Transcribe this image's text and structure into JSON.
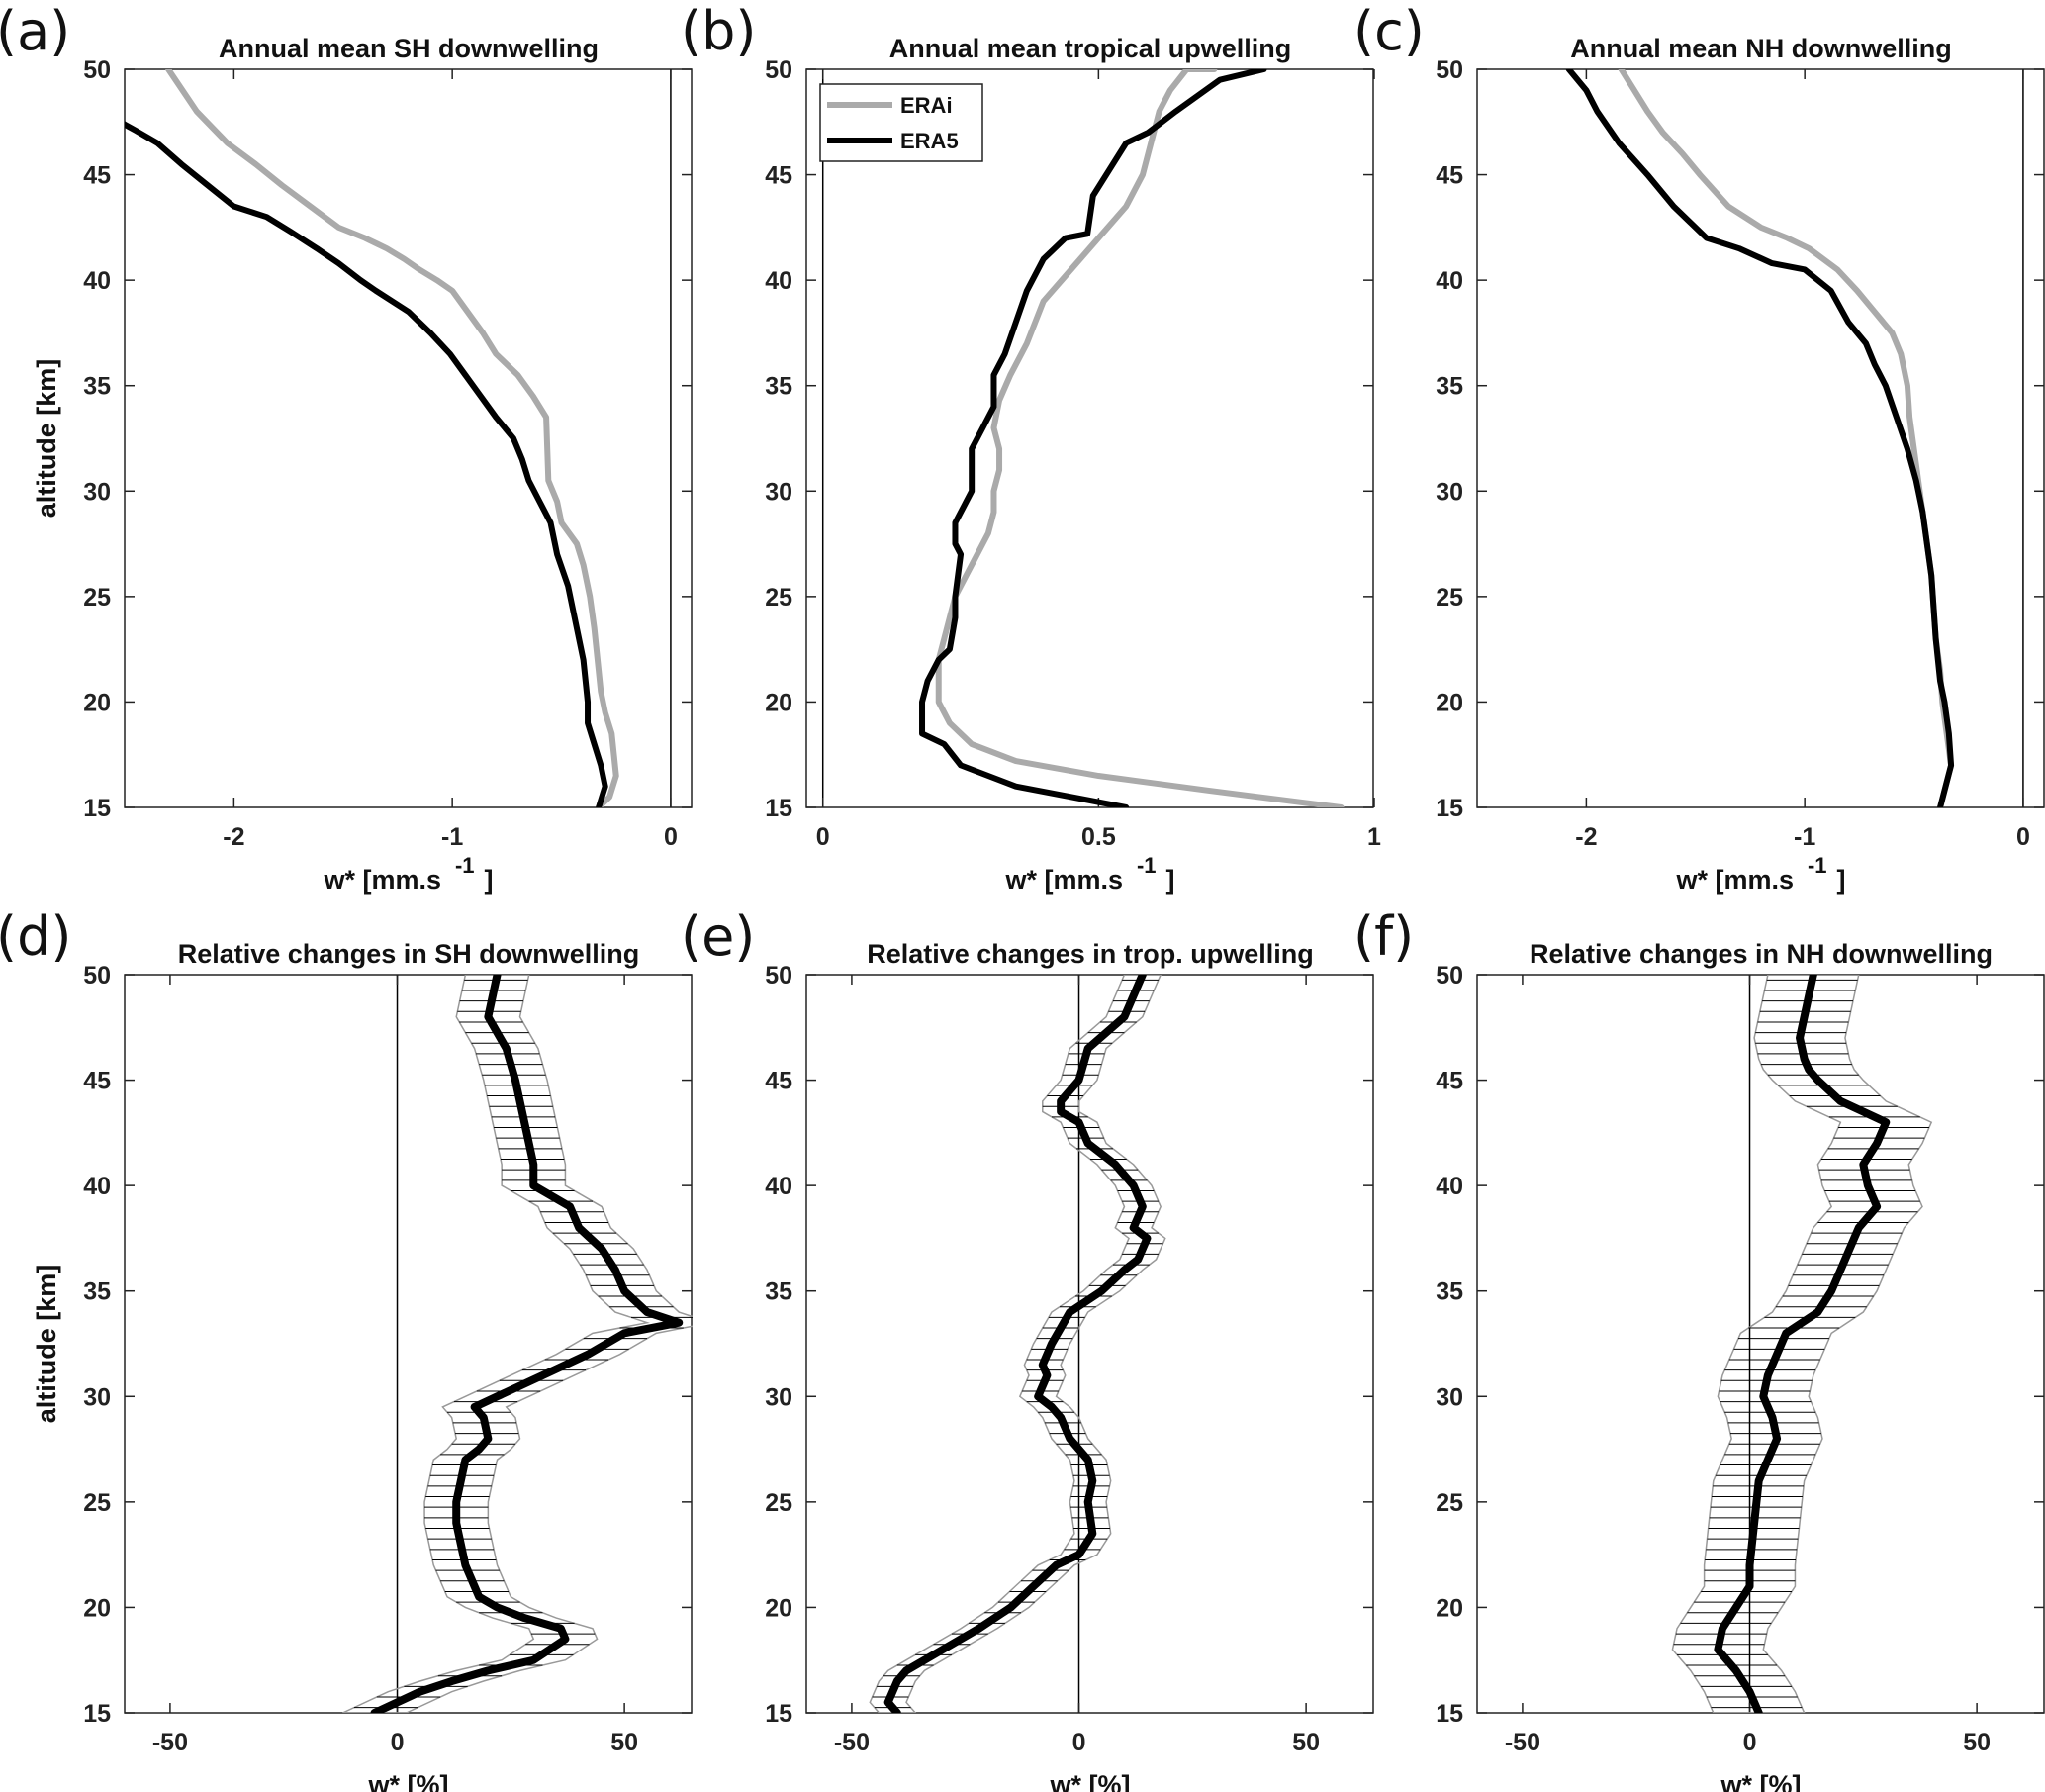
{
  "figure": {
    "id": "six-panel-wstar-figure"
  },
  "chart_data": [
    {
      "panel": "a",
      "panel_label": "(a)",
      "type": "line",
      "title": "Annual mean SH downwelling",
      "xlabel": "w* [mm.s",
      "xlabel_sup": "-1",
      "xlabel_suffix": "]",
      "ylabel": "altitude [km]",
      "xlim": [
        -2.5,
        0.1
      ],
      "ylim": [
        15,
        50
      ],
      "xticks": [
        -2,
        -1,
        0
      ],
      "xtick_labels": [
        "-2",
        "-1",
        "0"
      ],
      "yticks": [
        15,
        20,
        25,
        30,
        35,
        40,
        45,
        50
      ],
      "zero_line": 0,
      "series": [
        {
          "name": "ERAi",
          "color": "#aaaaaa",
          "x": [
            -0.33,
            -0.28,
            -0.25,
            -0.26,
            -0.27,
            -0.3,
            -0.32,
            -0.33,
            -0.34,
            -0.35,
            -0.37,
            -0.4,
            -0.43,
            -0.5,
            -0.52,
            -0.56,
            -0.57,
            -0.63,
            -0.7,
            -0.8,
            -0.86,
            -0.93,
            -1.0,
            -1.07,
            -1.15,
            -1.22,
            -1.3,
            -1.4,
            -1.52,
            -1.65,
            -1.78,
            -1.9,
            -2.03,
            -2.17,
            -2.3
          ],
          "y": [
            15,
            15.5,
            16.5,
            17.5,
            18.5,
            19.5,
            20.5,
            21.5,
            22.5,
            23.5,
            25,
            26.5,
            27.5,
            28.5,
            29.5,
            30.5,
            33.5,
            34.5,
            35.5,
            36.5,
            37.5,
            38.5,
            39.5,
            40.0,
            40.5,
            41.0,
            41.5,
            42.0,
            42.5,
            43.5,
            44.5,
            45.5,
            46.5,
            48,
            50
          ]
        },
        {
          "name": "ERA5",
          "color": "#000000",
          "x": [
            -0.33,
            -0.3,
            -0.32,
            -0.35,
            -0.38,
            -0.38,
            -0.39,
            -0.4,
            -0.42,
            -0.44,
            -0.47,
            -0.52,
            -0.55,
            -0.6,
            -0.65,
            -0.68,
            -0.72,
            -0.8,
            -0.87,
            -0.94,
            -1.01,
            -1.1,
            -1.2,
            -1.35,
            -1.42,
            -1.52,
            -1.62,
            -1.74,
            -1.85,
            -2.0,
            -2.12,
            -2.24,
            -2.35,
            -2.45,
            -2.52
          ],
          "y": [
            15,
            16,
            17,
            18,
            19,
            20,
            21,
            22,
            23,
            24,
            25.5,
            27,
            28.5,
            29.5,
            30.5,
            31.5,
            32.5,
            33.5,
            34.5,
            35.5,
            36.5,
            37.5,
            38.5,
            39.5,
            40,
            40.8,
            41.5,
            42.3,
            43.0,
            43.5,
            44.5,
            45.5,
            46.5,
            47.1,
            47.5
          ]
        }
      ]
    },
    {
      "panel": "b",
      "panel_label": "(b)",
      "type": "line",
      "title": "Annual mean tropical upwelling",
      "xlabel": "w* [mm.s",
      "xlabel_sup": "-1",
      "xlabel_suffix": "]",
      "ylabel": "",
      "xlim": [
        -0.03,
        1.0
      ],
      "ylim": [
        15,
        50
      ],
      "xticks": [
        0,
        0.5,
        1
      ],
      "xtick_labels": [
        "0",
        "0.5",
        "1"
      ],
      "yticks": [
        15,
        20,
        25,
        30,
        35,
        40,
        45,
        50
      ],
      "zero_line": 0,
      "legend": {
        "position": "top-left",
        "entries": [
          "ERAi",
          "ERA5"
        ]
      },
      "series": [
        {
          "name": "ERAi",
          "color": "#aaaaaa",
          "x": [
            0.94,
            0.7,
            0.5,
            0.35,
            0.27,
            0.23,
            0.21,
            0.21,
            0.21,
            0.22,
            0.23,
            0.24,
            0.26,
            0.28,
            0.3,
            0.31,
            0.31,
            0.32,
            0.32,
            0.31,
            0.32,
            0.34,
            0.37,
            0.4,
            0.45,
            0.5,
            0.55,
            0.58,
            0.59,
            0.6,
            0.61,
            0.63,
            0.66,
            0.71
          ],
          "y": [
            15,
            15.8,
            16.5,
            17.2,
            18,
            19,
            20,
            21,
            22,
            23,
            24,
            25,
            26,
            27,
            28,
            29,
            30,
            31,
            32,
            33,
            34.3,
            35.5,
            37,
            39,
            40.5,
            42,
            43.5,
            45,
            46,
            47,
            48,
            49,
            50,
            50
          ],
          "note_last_point_duplicate": true
        },
        {
          "name": "ERA5",
          "color": "#000000",
          "x": [
            0.55,
            0.45,
            0.35,
            0.25,
            0.22,
            0.18,
            0.18,
            0.19,
            0.21,
            0.23,
            0.24,
            0.24,
            0.25,
            0.24,
            0.24,
            0.26,
            0.27,
            0.27,
            0.27,
            0.29,
            0.31,
            0.31,
            0.33,
            0.35,
            0.37,
            0.4,
            0.44,
            0.48,
            0.49,
            0.55,
            0.59,
            0.64,
            0.72,
            0.8
          ],
          "y": [
            15,
            15.5,
            16,
            17,
            18,
            18.5,
            20,
            21,
            22,
            22.5,
            24,
            25,
            27,
            27.5,
            28.5,
            29.5,
            30,
            31,
            32,
            33,
            34,
            35.5,
            36.5,
            38,
            39.5,
            41,
            42,
            42.2,
            44,
            46.5,
            47,
            48,
            49.5,
            50
          ]
        }
      ]
    },
    {
      "panel": "c",
      "panel_label": "(c)",
      "type": "line",
      "title": "Annual mean NH downwelling",
      "xlabel": "w* [mm.s",
      "xlabel_sup": "-1",
      "xlabel_suffix": "]",
      "ylabel": "",
      "xlim": [
        -2.5,
        0.1
      ],
      "ylim": [
        15,
        50
      ],
      "xticks": [
        -2,
        -1,
        0
      ],
      "xtick_labels": [
        "-2",
        "-1",
        "0"
      ],
      "yticks": [
        15,
        20,
        25,
        30,
        35,
        40,
        45,
        50
      ],
      "zero_line": 0,
      "series": [
        {
          "name": "ERAi",
          "color": "#aaaaaa",
          "x": [
            -0.38,
            -0.33,
            -0.35,
            -0.37,
            -0.38,
            -0.4,
            -0.41,
            -0.42,
            -0.44,
            -0.46,
            -0.48,
            -0.5,
            -0.52,
            -0.53,
            -0.56,
            -0.6,
            -0.68,
            -0.76,
            -0.85,
            -0.98,
            -1.08,
            -1.2,
            -1.35,
            -1.48,
            -1.56,
            -1.65,
            -1.72,
            -1.78,
            -1.84
          ],
          "y": [
            15,
            17,
            18.5,
            20,
            21.5,
            23,
            24.5,
            26,
            27.5,
            29,
            30.5,
            32,
            33.5,
            35,
            36.5,
            37.5,
            38.5,
            39.5,
            40.5,
            41.5,
            42,
            42.5,
            43.5,
            45,
            46,
            47,
            48,
            49,
            50
          ]
        },
        {
          "name": "ERA5",
          "color": "#000000",
          "x": [
            -0.38,
            -0.33,
            -0.34,
            -0.36,
            -0.38,
            -0.39,
            -0.4,
            -0.41,
            -0.42,
            -0.44,
            -0.46,
            -0.48,
            -0.49,
            -0.53,
            -0.58,
            -0.63,
            -0.68,
            -0.72,
            -0.8,
            -0.88,
            -1.0,
            -1.15,
            -1.3,
            -1.45,
            -1.6,
            -1.72,
            -1.85,
            -1.95,
            -2.0,
            -2.08
          ],
          "y": [
            15,
            17,
            18.5,
            20,
            21,
            22,
            23,
            24.5,
            26,
            27.5,
            29,
            30,
            30.5,
            32,
            33.5,
            35,
            36,
            37,
            38,
            39.5,
            40.5,
            40.8,
            41.5,
            42,
            43.5,
            45,
            46.5,
            48,
            49,
            50
          ]
        }
      ]
    },
    {
      "panel": "d",
      "panel_label": "(d)",
      "type": "line",
      "title": "Relative changes in SH downwelling",
      "xlabel": "w* [%]",
      "ylabel": "altitude [km]",
      "xlim": [
        -60,
        65
      ],
      "ylim": [
        15,
        50
      ],
      "xticks": [
        -50,
        0,
        50
      ],
      "xtick_labels": [
        "-50",
        "0",
        "50"
      ],
      "yticks": [
        15,
        20,
        25,
        30,
        35,
        40,
        45,
        50
      ],
      "zero_line": 0,
      "series": [
        {
          "name": "mean",
          "color": "#000000",
          "x": [
            -5,
            5,
            12,
            20,
            30,
            37,
            36,
            28,
            22,
            18,
            17,
            16,
            15,
            14,
            13,
            13,
            14,
            15,
            18,
            20,
            19,
            17,
            22,
            32,
            42,
            50,
            62,
            55,
            50,
            48,
            45,
            40,
            38,
            30,
            30,
            28,
            26,
            24,
            20,
            22
          ],
          "y": [
            15,
            16,
            16.5,
            17,
            17.5,
            18.5,
            19,
            19.5,
            20,
            20.5,
            21,
            21.5,
            22,
            23,
            24,
            25,
            26,
            27,
            27.5,
            28,
            29,
            29.5,
            30,
            31,
            32,
            33,
            33.5,
            34,
            35,
            36,
            37,
            38,
            39,
            40,
            41,
            43,
            45,
            46.5,
            48,
            50
          ]
        }
      ],
      "band": {
        "color": "#999999",
        "halfwidth_pct": 7
      }
    },
    {
      "panel": "e",
      "panel_label": "(e)",
      "type": "line",
      "title": "Relative changes in trop. upwelling",
      "xlabel": "w* [%]",
      "ylabel": "",
      "xlim": [
        -60,
        65
      ],
      "ylim": [
        15,
        50
      ],
      "xticks": [
        -50,
        0,
        50
      ],
      "xtick_labels": [
        "-50",
        "0",
        "50"
      ],
      "yticks": [
        15,
        20,
        25,
        30,
        35,
        40,
        45,
        50
      ],
      "zero_line": 0,
      "series": [
        {
          "name": "mean",
          "color": "#000000",
          "x": [
            -40,
            -42,
            -40,
            -38,
            -30,
            -22,
            -15,
            -10,
            -5,
            0,
            3,
            2,
            3,
            2,
            -2,
            -4,
            -6,
            -9,
            -7,
            -8,
            -6,
            -2,
            5,
            10,
            13,
            15,
            12,
            14,
            12,
            8,
            2,
            0,
            -4,
            -4,
            0,
            2,
            10,
            14
          ],
          "y": [
            15,
            15.5,
            16.5,
            17,
            18,
            19,
            20,
            21,
            22,
            22.5,
            23.5,
            25,
            26,
            27,
            28,
            29,
            29.5,
            30,
            31,
            31.5,
            32.5,
            34,
            35,
            36,
            36.5,
            37.5,
            38,
            39,
            40,
            41,
            42,
            43,
            43.5,
            44,
            45,
            46.5,
            48,
            50
          ]
        }
      ],
      "band": {
        "color": "#999999",
        "halfwidth_pct": 4
      }
    },
    {
      "panel": "f",
      "panel_label": "(f)",
      "type": "line",
      "title": "Relative changes in NH downwelling",
      "xlabel": "w* [%]",
      "ylabel": "",
      "xlim": [
        -60,
        65
      ],
      "ylim": [
        15,
        50
      ],
      "xticks": [
        -50,
        0,
        50
      ],
      "xtick_labels": [
        "-50",
        "0",
        "50"
      ],
      "yticks": [
        15,
        20,
        25,
        30,
        35,
        40,
        45,
        50
      ],
      "zero_line": 0,
      "series": [
        {
          "name": "mean",
          "color": "#000000",
          "x": [
            2,
            0,
            -3,
            -5,
            -7,
            -6,
            -3,
            0,
            0,
            1,
            2,
            4,
            6,
            5,
            3,
            4,
            8,
            15,
            18,
            20,
            22,
            24,
            28,
            26,
            25,
            28,
            30,
            25,
            20,
            15,
            13,
            12,
            11,
            12,
            13,
            14
          ],
          "y": [
            15,
            16,
            17,
            17.5,
            18,
            19,
            20,
            21,
            22,
            24,
            26,
            27,
            28,
            29,
            30,
            31,
            33,
            34,
            35,
            36,
            37,
            38,
            39,
            40,
            41,
            42,
            43,
            43.5,
            44,
            45,
            45.5,
            46,
            47,
            48,
            49,
            50
          ]
        }
      ],
      "band": {
        "color": "#999999",
        "halfwidth_pct": 10
      }
    }
  ]
}
